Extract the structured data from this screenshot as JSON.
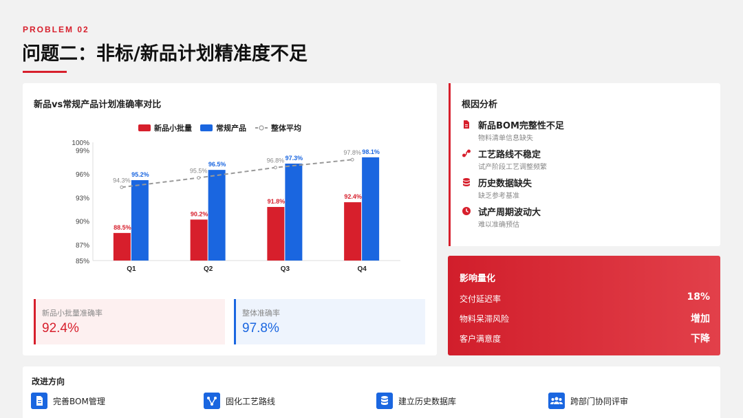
{
  "header": {
    "eyebrow": "PROBLEM 02",
    "title": "问题二：非标/新品计划精准度不足"
  },
  "chart_card": {
    "title": "新品vs常规产品计划准确率对比"
  },
  "chart_data": {
    "type": "bar",
    "title": "新品vs常规产品计划准确率对比",
    "categories": [
      "Q1",
      "Q2",
      "Q3",
      "Q4"
    ],
    "series": [
      {
        "name": "新品小批量",
        "values": [
          88.5,
          90.2,
          91.8,
          92.4
        ],
        "labels": [
          "88.5%",
          "90.2%",
          "91.8%",
          "92.4%"
        ],
        "color": "#d71f2c",
        "kind": "bar"
      },
      {
        "name": "常规产品",
        "values": [
          95.2,
          96.5,
          97.3,
          98.1
        ],
        "labels": [
          "95.2%",
          "96.5%",
          "97.3%",
          "98.1%"
        ],
        "color": "#1a66e0",
        "kind": "bar"
      },
      {
        "name": "整体平均",
        "values": [
          94.3,
          95.5,
          96.8,
          97.8
        ],
        "labels": [
          "94.3%",
          "95.5%",
          "96.8%",
          "97.8%"
        ],
        "color": "#999999",
        "kind": "line-dashed"
      }
    ],
    "yticks": [
      85,
      87,
      90,
      93,
      96,
      99,
      100
    ],
    "ytick_labels": [
      "85%",
      "87%",
      "90%",
      "93%",
      "96%",
      "99%",
      "100%"
    ],
    "ylim": [
      85,
      100
    ],
    "legend": "top-center",
    "grid": false
  },
  "kpis": [
    {
      "label": "新品小批量准确率",
      "value": "92.4%"
    },
    {
      "label": "整体准确率",
      "value": "97.8%"
    }
  ],
  "root_cause": {
    "title": "根因分析",
    "items": [
      {
        "name": "新品BOM完整性不足",
        "desc": "物料清单信息缺失",
        "icon": "document-icon"
      },
      {
        "name": "工艺路线不稳定",
        "desc": "试产阶段工艺调整频繁",
        "icon": "route-icon"
      },
      {
        "name": "历史数据缺失",
        "desc": "缺乏参考基准",
        "icon": "database-icon"
      },
      {
        "name": "试产周期波动大",
        "desc": "难以准确预估",
        "icon": "clock-icon"
      }
    ]
  },
  "impact": {
    "title": "影响量化",
    "rows": [
      {
        "key": "交付延迟率",
        "value": "18%"
      },
      {
        "key": "物料呆滞风险",
        "value": "增加"
      },
      {
        "key": "客户满意度",
        "value": "下降"
      }
    ]
  },
  "improve": {
    "title": "改进方向",
    "items": [
      {
        "label": "完善BOM管理",
        "icon": "document-icon"
      },
      {
        "label": "固化工艺路线",
        "icon": "flow-icon"
      },
      {
        "label": "建立历史数据库",
        "icon": "database-icon"
      },
      {
        "label": "跨部门协同评审",
        "icon": "team-icon"
      }
    ]
  },
  "colors": {
    "accent_red": "#d71f2c",
    "accent_blue": "#1a66e0",
    "avg_gray": "#999999"
  }
}
